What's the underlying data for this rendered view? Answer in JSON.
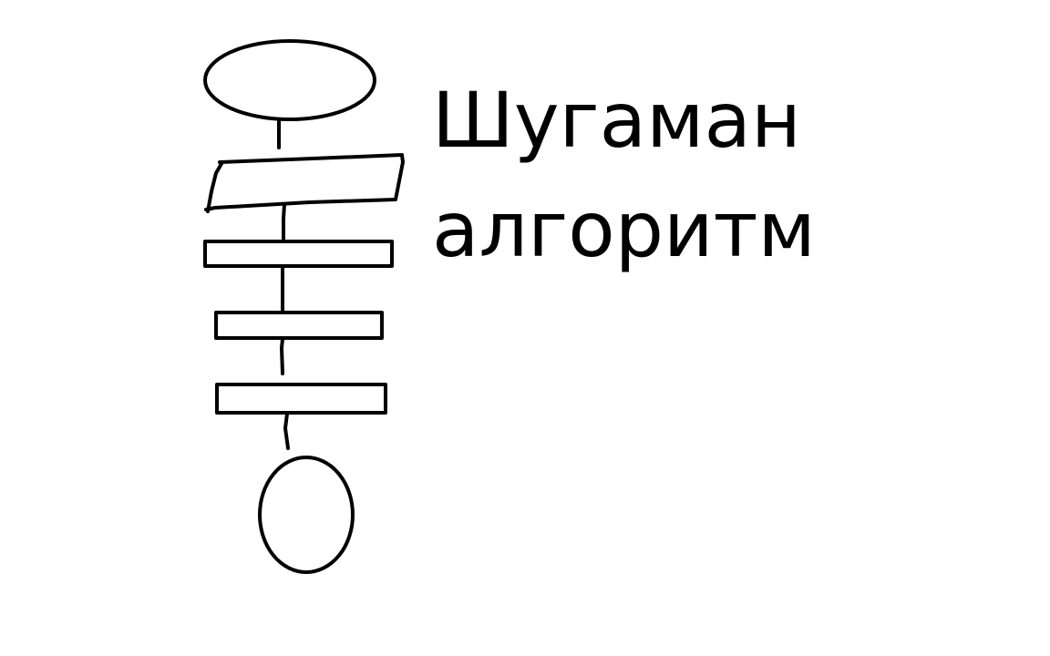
{
  "diagram": {
    "title_line1": "Шугаман",
    "title_line2": "алгоритм",
    "stroke_color": "#000000",
    "background_color": "#ffffff",
    "nodes": [
      {
        "kind": "terminator",
        "role": "start"
      },
      {
        "kind": "parallelogram",
        "role": "input"
      },
      {
        "kind": "process",
        "role": "step-1"
      },
      {
        "kind": "process",
        "role": "step-2"
      },
      {
        "kind": "process",
        "role": "step-3"
      },
      {
        "kind": "terminator",
        "role": "end"
      }
    ]
  }
}
